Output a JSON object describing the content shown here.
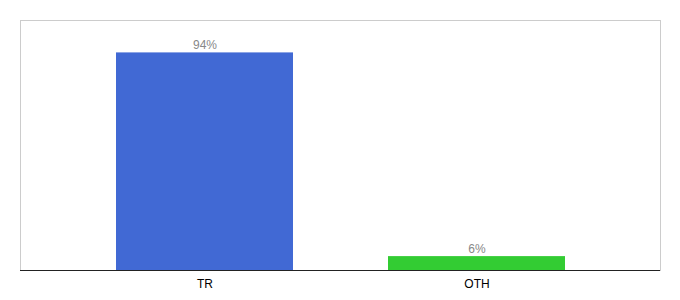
{
  "chart_data": {
    "type": "bar",
    "categories": [
      "TR",
      "OTH"
    ],
    "values": [
      94,
      6
    ],
    "value_labels": [
      "94%",
      "6%"
    ],
    "colors": [
      "#4169d4",
      "#33cc33"
    ],
    "ylim": [
      0,
      108
    ],
    "data_labels": true,
    "tick_labels": "x"
  }
}
